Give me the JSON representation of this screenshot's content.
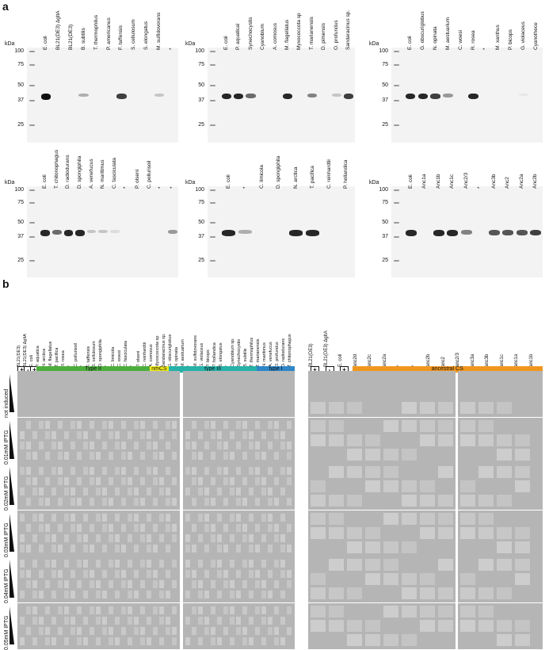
{
  "panel_a_letter": "a",
  "panel_b_letter": "b",
  "kda": "kDa",
  "blots": [
    {
      "mw": [
        "100",
        "75",
        "50",
        "37",
        "25"
      ],
      "lanes": [
        "E. coli",
        "BL21(DE3) ΔgltA",
        "BL21(DE3)",
        "B. subtilis",
        "T. thermophilus",
        "P. americanus",
        "F. taffensis",
        "S. cellulosum",
        "S. elongatus",
        "M. sulfidovorans",
        "*"
      ]
    },
    {
      "mw": [
        "100",
        "75",
        "50",
        "37",
        "25"
      ],
      "lanes": [
        "E. coli",
        "P. aquatical",
        "Synechocystis",
        "Cyanobium",
        "A. comosus",
        "M. flagellatus",
        "Myxococcota sp",
        "T. marianensis",
        "D. pimensis",
        "O. profundus",
        "Sandaracinus sp."
      ]
    },
    {
      "mw": [
        "100",
        "75",
        "50",
        "37",
        "25"
      ],
      "lanes": [
        "E. coli",
        "G. obscuriglobus",
        "N. opinata",
        "M. aestuarium",
        "C. woesi",
        "R. rosea",
        "*",
        "M. xanthus",
        "P. bicops",
        "G. violaceus",
        "Cyanothece"
      ]
    },
    {
      "mw": [
        "100",
        "75",
        "50",
        "37",
        "25"
      ],
      "lanes": [
        "E. coli",
        "T. chitonophagus",
        "D. radiodurans",
        "D. spongiphila",
        "A. venefucus",
        "N. maritimus",
        "C. fasciculata",
        "*",
        "P. olseni",
        "C. pollurisoil",
        "*",
        "*"
      ]
    },
    {
      "mw": [
        "100",
        "75",
        "50",
        "37",
        "25"
      ],
      "lanes": [
        "E. coli",
        "*",
        "C. limicola",
        "D. spongiphila",
        "N. arctica",
        "T. pacifica",
        "C. reinhardtii",
        "P. hollandica"
      ]
    },
    {
      "mw": [
        "100",
        "75",
        "50",
        "37",
        "25"
      ],
      "lanes": [
        "E. coli",
        "Anc1a",
        "Anc1b",
        "Anc1c",
        "Anc2/3",
        "*",
        "Anc3b",
        "Anc2",
        "Anc2a",
        "Anc2b"
      ]
    }
  ],
  "panel_b_left": {
    "controls": [
      "BL21(DE3)",
      "BL21(DE3) ΔgltA",
      "E. coli"
    ],
    "control_signs": [
      "+",
      "-",
      "+"
    ],
    "strains": [
      "P. aquatica",
      "N. arctica",
      "M. flagellatus",
      "T. pacifica",
      "R. rosea",
      "*",
      "C. pollurisoil",
      "*",
      "F. taffensis",
      "S. cellulosum",
      "D. spongiphila",
      "*",
      "C. limicola",
      "C. woesi",
      "C. fasciculata",
      "*",
      "P. olseni",
      "C. reinhardtii",
      "A. comosus",
      "Myxococcota sp",
      "Sandaracinus sp.",
      "G. obscuriglobus",
      "N. opinata",
      "M. aestuarium",
      "*",
      "M. sulfidovorans",
      "G. violaceus",
      "P. bicops",
      "P. hollandica",
      "S. elongatus",
      "*",
      "Cyanobium sp.",
      "Synechocystis",
      "B. subtilis",
      "T. thermophilus",
      "T. marianensis",
      "N. maritimus",
      "A. venefucus",
      "O. profundus",
      "D. radiodurans",
      "T. chitonophagus"
    ],
    "groups": [
      {
        "label": "Type II",
        "color": "#4caf3c"
      },
      {
        "label": "nmCS",
        "color": "#f2ec1c"
      },
      {
        "label": "type III",
        "color": "#26b1a9"
      },
      {
        "label": "type I",
        "color": "#2f86c8"
      }
    ]
  },
  "panel_b_right": {
    "controls": [
      "BL21(DE3)",
      "BL21(DE3) ΔgltA",
      "E. coli"
    ],
    "control_signs": [
      "+",
      "-",
      "+"
    ],
    "strains": [
      "anc2d",
      "anc2c",
      "anc2a",
      "*",
      "*",
      "anc2b",
      "anc2",
      "anc2/3",
      "anc3a",
      "anc3b",
      "anc1c",
      "anc1a",
      "anc1b"
    ],
    "group": {
      "label": "ancestral CS",
      "color": "#f0961e"
    }
  },
  "iptg_rows": [
    "not induced",
    "0.01mM IPTG",
    "0.02mM IPTG",
    "0.03mM IPTG",
    "0.04mM IPTG",
    "0.05mM IPTG"
  ]
}
